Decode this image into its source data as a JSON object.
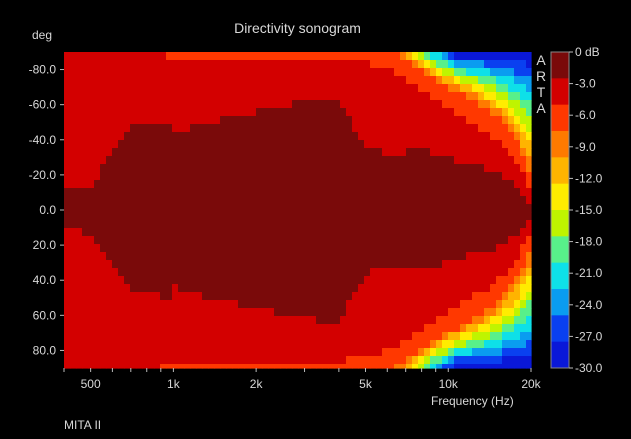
{
  "chart_data": {
    "type": "heatmap",
    "title": "Directivity sonogram",
    "ylabel": "deg",
    "xlabel": "Frequency (Hz)",
    "x_scale": "log",
    "xlim": [
      400,
      20000
    ],
    "ylim": [
      -90,
      90
    ],
    "x_ticks": [
      {
        "value": 500,
        "label": "500"
      },
      {
        "value": 1000,
        "label": "1k"
      },
      {
        "value": 2000,
        "label": "2k"
      },
      {
        "value": 5000,
        "label": "5k"
      },
      {
        "value": 10000,
        "label": "10k"
      },
      {
        "value": 20000,
        "label": "20k"
      }
    ],
    "y_ticks": [
      {
        "value": -80,
        "label": "-80.0"
      },
      {
        "value": -60,
        "label": "-60.0"
      },
      {
        "value": -40,
        "label": "-40.0"
      },
      {
        "value": -20,
        "label": "-20.0"
      },
      {
        "value": 0,
        "label": "0.0"
      },
      {
        "value": 20,
        "label": "20.0"
      },
      {
        "value": 40,
        "label": "40.0"
      },
      {
        "value": 60,
        "label": "60.0"
      },
      {
        "value": 80,
        "label": "80.0"
      }
    ],
    "colorbar": {
      "unit": "dB",
      "labels": [
        "0 dB",
        "-3.0",
        "-6.0",
        "-9.0",
        "-12.0",
        "-15.0",
        "-18.0",
        "-21.0",
        "-24.0",
        "-27.0",
        "-30.0"
      ],
      "colors": [
        "#7a0a0a",
        "#d30000",
        "#ff3800",
        "#ff7a00",
        "#ffb400",
        "#ffec00",
        "#bff400",
        "#58f08a",
        "#0ee0e8",
        "#0a9cf0",
        "#0a40f0",
        "#0a18d8"
      ]
    },
    "levels_db": [
      0,
      -3,
      -6,
      -9,
      -12,
      -15,
      -18,
      -21,
      -24,
      -27,
      -30
    ],
    "angle_rows_deg": [
      -90,
      -80,
      -70,
      -60,
      -50,
      -40,
      -30,
      -20,
      -10,
      0,
      10,
      20,
      30,
      40,
      50,
      60,
      70,
      80,
      90
    ],
    "contour_angle_limits": {
      "freq_hz": [
        400,
        500,
        700,
        850,
        950,
        1000,
        1150,
        1500,
        2000,
        3000,
        4000,
        4500,
        5000,
        5500,
        6000,
        7000,
        8000,
        10000,
        12000,
        14000,
        16000,
        18000,
        20000
      ],
      "db_0": [
        10,
        14,
        47,
        48,
        52,
        44,
        47,
        52,
        56,
        62,
        64,
        48,
        36,
        34,
        32,
        33,
        35,
        30,
        26,
        23,
        19,
        12,
        2
      ],
      "db_-3": [
        90,
        90,
        90,
        90,
        88,
        86,
        86,
        86,
        86,
        86,
        86,
        85,
        84,
        82,
        80,
        74,
        67,
        57,
        50,
        44,
        36,
        26,
        12
      ],
      "db_-6": [
        90,
        90,
        90,
        90,
        90,
        90,
        90,
        90,
        90,
        90,
        90,
        90,
        90,
        90,
        90,
        86,
        79,
        70,
        64,
        57,
        49,
        37,
        20
      ]
    },
    "watermark": "ARTA"
  },
  "footer": "MITA II"
}
